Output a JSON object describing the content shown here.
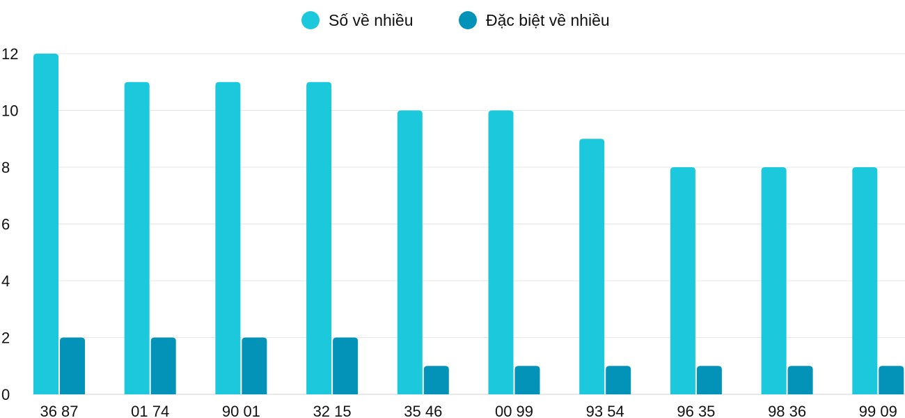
{
  "chart_data": {
    "type": "bar",
    "categories": [
      "36 87",
      "01 74",
      "90 01",
      "32 15",
      "35 46",
      "00 99",
      "93 54",
      "96 35",
      "98 36",
      "99 09"
    ],
    "series": [
      {
        "name": "Số về nhiều",
        "color": "#1bc8dc",
        "values": [
          12,
          11,
          11,
          11,
          10,
          10,
          9,
          8,
          8,
          8
        ]
      },
      {
        "name": "Đặc biệt về nhiều",
        "color": "#0393b8",
        "values": [
          2,
          2,
          2,
          2,
          1,
          1,
          1,
          1,
          1,
          1
        ]
      }
    ],
    "yticks": [
      "0",
      "2",
      "4",
      "6",
      "8",
      "10",
      "12"
    ],
    "ylim": [
      0,
      12
    ],
    "grid": true,
    "legend": "top-center"
  }
}
